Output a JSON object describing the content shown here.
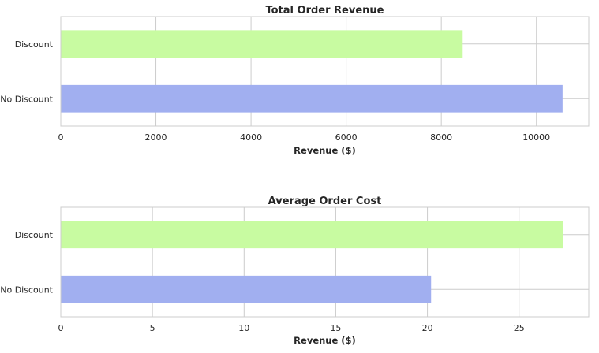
{
  "chart_data": [
    {
      "type": "bar",
      "orientation": "horizontal",
      "title": "Total Order Revenue",
      "xlabel": "Revenue ($)",
      "ylabel": "",
      "categories": [
        "No Discount",
        "Discount"
      ],
      "values": [
        10550,
        8450
      ],
      "colors": [
        "#a1aff0",
        "#c8fba1"
      ],
      "xlim": [
        0,
        11100
      ],
      "xticks": [
        0,
        2000,
        4000,
        6000,
        8000,
        10000
      ],
      "grid": true,
      "legend": "none"
    },
    {
      "type": "bar",
      "orientation": "horizontal",
      "title": "Average Order Cost",
      "xlabel": "Revenue ($)",
      "ylabel": "",
      "categories": [
        "No Discount",
        "Discount"
      ],
      "values": [
        20.2,
        27.4
      ],
      "colors": [
        "#a1aff0",
        "#c8fba1"
      ],
      "xlim": [
        0,
        28.8
      ],
      "xticks": [
        0,
        5,
        10,
        15,
        20,
        25
      ],
      "grid": true,
      "legend": "none"
    }
  ]
}
